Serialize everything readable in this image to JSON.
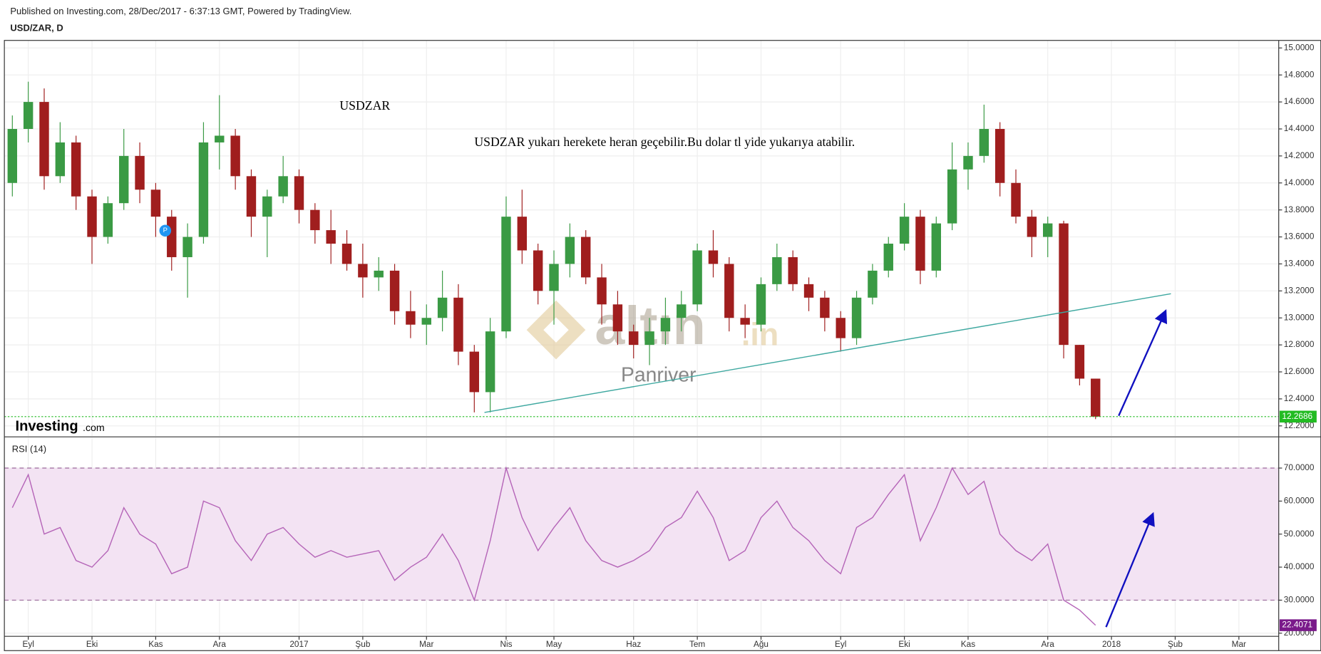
{
  "header": {
    "published": "Published on Investing.com, 28/Dec/2017 - 6:37:13 GMT, Powered by TradingView.",
    "symbol": "USD/ZAR, D"
  },
  "chart_data": [
    {
      "type": "candlestick",
      "title": "USDZAR",
      "annotation": "USDZAR yukarı herekete heran geçebilir.Bu dolar tl yide yukarıya atabilir.",
      "watermark": {
        "brand": "altın",
        "suffix": ".in",
        "author": "Panriver"
      },
      "logo": {
        "brand": "Investing",
        "suffix": ".com"
      },
      "marker": "P",
      "up_color": "#3a9a44",
      "down_color": "#a01e1e",
      "open": [
        14.0,
        14.4,
        14.6,
        14.05,
        14.3,
        13.9,
        13.6,
        13.85,
        14.2,
        13.95,
        13.75,
        13.45,
        13.6,
        14.3,
        14.35,
        14.05,
        13.75,
        13.9,
        14.05,
        13.8,
        13.65,
        13.55,
        13.4,
        13.3,
        13.35,
        13.05,
        12.95,
        13.0,
        13.15,
        12.75,
        12.45,
        12.9,
        13.75,
        13.5,
        13.2,
        13.4,
        13.6,
        13.3,
        13.1,
        12.9,
        12.8,
        12.9,
        13.0,
        13.1,
        13.5,
        13.4,
        13.0,
        12.95,
        13.25,
        13.45,
        13.25,
        13.15,
        13.0,
        12.85,
        13.15,
        13.35,
        13.55,
        13.75,
        13.35,
        13.7,
        14.1,
        14.2,
        14.4,
        14.0,
        13.75,
        13.6,
        13.7,
        12.8,
        12.55,
        null,
        null,
        null,
        null,
        null,
        null,
        null,
        null,
        null,
        null,
        null
      ],
      "high": [
        14.5,
        14.75,
        14.7,
        14.45,
        14.35,
        13.95,
        13.9,
        14.4,
        14.3,
        14.0,
        13.8,
        13.7,
        14.45,
        14.65,
        14.4,
        14.1,
        13.95,
        14.2,
        14.1,
        13.85,
        13.8,
        13.65,
        13.55,
        13.45,
        13.4,
        13.2,
        13.1,
        13.35,
        13.25,
        12.8,
        13.0,
        13.9,
        13.95,
        13.55,
        13.5,
        13.7,
        13.65,
        13.4,
        13.2,
        12.95,
        13.0,
        13.15,
        13.2,
        13.55,
        13.65,
        13.45,
        13.1,
        13.3,
        13.55,
        13.5,
        13.3,
        13.2,
        13.05,
        13.2,
        13.4,
        13.6,
        13.85,
        13.8,
        13.75,
        14.3,
        14.3,
        14.58,
        14.45,
        14.1,
        13.8,
        13.75,
        13.72,
        12.8,
        12.55,
        null,
        null,
        null,
        null,
        null,
        null,
        null,
        null,
        null,
        null,
        null
      ],
      "low": [
        13.9,
        14.3,
        13.95,
        14.0,
        13.8,
        13.4,
        13.55,
        13.8,
        13.85,
        13.6,
        13.35,
        13.15,
        13.55,
        14.1,
        13.95,
        13.6,
        13.45,
        13.85,
        13.7,
        13.55,
        13.4,
        13.35,
        13.15,
        13.2,
        12.95,
        12.85,
        12.8,
        12.9,
        12.65,
        12.3,
        12.3,
        12.85,
        13.4,
        13.1,
        12.95,
        13.3,
        13.25,
        12.95,
        12.8,
        12.7,
        12.65,
        12.8,
        12.9,
        13.05,
        13.3,
        12.9,
        12.85,
        12.9,
        13.2,
        13.2,
        13.05,
        12.9,
        12.75,
        12.8,
        13.1,
        13.3,
        13.5,
        13.25,
        13.3,
        13.65,
        13.95,
        14.15,
        13.9,
        13.7,
        13.45,
        13.45,
        12.7,
        12.5,
        12.25,
        null,
        null,
        null,
        null,
        null,
        null,
        null,
        null,
        null,
        null,
        null
      ],
      "close": [
        14.4,
        14.6,
        14.05,
        14.3,
        13.9,
        13.6,
        13.85,
        14.2,
        13.95,
        13.75,
        13.45,
        13.6,
        14.3,
        14.35,
        14.05,
        13.75,
        13.9,
        14.05,
        13.8,
        13.65,
        13.55,
        13.4,
        13.3,
        13.35,
        13.05,
        12.95,
        13.0,
        13.15,
        12.75,
        12.45,
        12.9,
        13.75,
        13.5,
        13.2,
        13.4,
        13.6,
        13.3,
        13.1,
        12.9,
        12.8,
        12.9,
        13.0,
        13.1,
        13.5,
        13.4,
        13.0,
        12.95,
        13.25,
        13.45,
        13.25,
        13.15,
        13.0,
        12.85,
        13.15,
        13.35,
        13.55,
        13.75,
        13.35,
        13.7,
        14.1,
        14.2,
        14.4,
        14.0,
        13.75,
        13.6,
        13.7,
        12.8,
        12.55,
        12.2686,
        null,
        null,
        null,
        null,
        null,
        null,
        null,
        null,
        null,
        null,
        null
      ],
      "last_value": 12.2686,
      "ylim": [
        12.125,
        15.056
      ],
      "yticks": [
        {
          "value": 12.2,
          "label": "12.2000"
        },
        {
          "value": 12.4,
          "label": "12.4000"
        },
        {
          "value": 12.6,
          "label": "12.6000"
        },
        {
          "value": 12.8,
          "label": "12.8000"
        },
        {
          "value": 13.0,
          "label": "13.0000"
        },
        {
          "value": 13.2,
          "label": "13.2000"
        },
        {
          "value": 13.4,
          "label": "13.4000"
        },
        {
          "value": 13.6,
          "label": "13.6000"
        },
        {
          "value": 13.8,
          "label": "13.8000"
        },
        {
          "value": 14.0,
          "label": "14.0000"
        },
        {
          "value": 14.2,
          "label": "14.2000"
        },
        {
          "value": 14.4,
          "label": "14.4000"
        },
        {
          "value": 14.6,
          "label": "14.6000"
        },
        {
          "value": 14.8,
          "label": "14.8000"
        },
        {
          "value": 15.0,
          "label": "15.0000"
        }
      ],
      "grid": true
    },
    {
      "type": "line",
      "categories": [
        null,
        "Eyl",
        null,
        null,
        null,
        "Eki",
        null,
        null,
        null,
        "Kas",
        null,
        null,
        null,
        "Ara",
        null,
        null,
        null,
        null,
        "2017",
        null,
        null,
        null,
        "Şub",
        null,
        null,
        null,
        "Mar",
        null,
        null,
        null,
        null,
        "Nis",
        null,
        null,
        "May",
        null,
        null,
        null,
        null,
        "Haz",
        null,
        null,
        null,
        "Tem",
        null,
        null,
        null,
        "Ağu",
        null,
        null,
        null,
        null,
        "Eyl",
        null,
        null,
        null,
        "Eki",
        null,
        null,
        null,
        "Kas",
        null,
        null,
        null,
        null,
        "Ara",
        null,
        null,
        null,
        "2018",
        null,
        null,
        null,
        "Şub",
        null,
        null,
        null,
        "Mar",
        null,
        null
      ],
      "series": [
        {
          "name": "RSI (14)",
          "color": "#b565b8",
          "values": [
            58,
            68,
            50,
            52,
            42,
            40,
            45,
            58,
            50,
            47,
            38,
            40,
            60,
            58,
            48,
            42,
            50,
            52,
            47,
            43,
            45,
            43,
            44,
            45,
            36,
            40,
            43,
            50,
            42,
            30,
            48,
            70,
            55,
            45,
            52,
            58,
            48,
            42,
            40,
            42,
            45,
            52,
            55,
            63,
            55,
            42,
            45,
            55,
            60,
            52,
            48,
            42,
            38,
            52,
            55,
            62,
            68,
            48,
            58,
            70,
            62,
            66,
            50,
            45,
            42,
            47,
            30,
            27,
            22.4071,
            null,
            null,
            null,
            null,
            null,
            null,
            null,
            null,
            null,
            null,
            null
          ]
        }
      ],
      "last_value": 22.4071,
      "band": [
        30,
        70
      ],
      "band_color": "#f3e3f3",
      "ylim": [
        19.3,
        79.2
      ],
      "yticks": [
        {
          "value": 20,
          "label": "20.0000"
        },
        {
          "value": 30,
          "label": "30.0000"
        },
        {
          "value": 40,
          "label": "40.0000"
        },
        {
          "value": 50,
          "label": "50.0000"
        },
        {
          "value": 60,
          "label": "60.0000"
        },
        {
          "value": 70,
          "label": "70.0000"
        }
      ],
      "grid": true
    }
  ]
}
